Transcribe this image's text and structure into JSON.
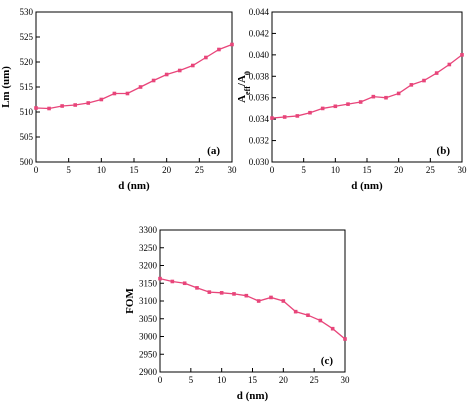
{
  "chart_data": [
    {
      "type": "line",
      "ylabel": "Lm (um)",
      "xlabel": "d (nm)",
      "annotation": "(a)",
      "color": "#e8457a",
      "x": [
        0,
        2,
        4,
        6,
        8,
        10,
        12,
        14,
        16,
        18,
        20,
        22,
        24,
        26,
        28,
        30
      ],
      "values": [
        510.8,
        510.7,
        511.2,
        511.4,
        511.8,
        512.5,
        513.7,
        513.7,
        515,
        516.3,
        517.5,
        518.3,
        519.3,
        520.9,
        522.5,
        523.5
      ],
      "xlim": [
        0,
        30
      ],
      "xticks": [
        0,
        5,
        10,
        15,
        20,
        25,
        30
      ],
      "ylim": [
        500,
        530
      ],
      "yticks": [
        500,
        505,
        510,
        515,
        520,
        525,
        530
      ]
    },
    {
      "type": "line",
      "ylabel": [
        "A",
        "eff",
        "/A",
        "0"
      ],
      "xlabel": "d (nm)",
      "annotation": "(b)",
      "color": "#e8457a",
      "x": [
        0,
        2,
        4,
        6,
        8,
        10,
        12,
        14,
        16,
        18,
        20,
        22,
        24,
        26,
        28,
        30
      ],
      "values": [
        0.0341,
        0.0342,
        0.0343,
        0.0346,
        0.035,
        0.0352,
        0.0354,
        0.0356,
        0.0361,
        0.036,
        0.0364,
        0.0372,
        0.0376,
        0.0383,
        0.0391,
        0.04
      ],
      "xlim": [
        0,
        30
      ],
      "xticks": [
        0,
        5,
        10,
        15,
        20,
        25,
        30
      ],
      "ylim": [
        0.03,
        0.044
      ],
      "yticks": [
        {
          "value": 0.03,
          "label": "0.030"
        },
        {
          "value": 0.032,
          "label": "0.032"
        },
        {
          "value": 0.034,
          "label": "0.034"
        },
        {
          "value": 0.036,
          "label": "0.036"
        },
        {
          "value": 0.038,
          "label": "0.038"
        },
        {
          "value": 0.04,
          "label": "0.040"
        },
        {
          "value": 0.042,
          "label": "0.042"
        },
        {
          "value": 0.044,
          "label": "0.044"
        }
      ]
    },
    {
      "type": "line",
      "ylabel": "FOM",
      "xlabel": "d (nm)",
      "annotation": "(c)",
      "color": "#e8457a",
      "x": [
        0,
        2,
        4,
        6,
        8,
        10,
        12,
        14,
        16,
        18,
        20,
        22,
        24,
        26,
        28,
        30
      ],
      "values": [
        3163,
        3155,
        3150,
        3137,
        3125,
        3123,
        3120,
        3115,
        3100,
        3110,
        3100,
        3070,
        3060,
        3045,
        3022,
        2993
      ],
      "xlim": [
        0,
        30
      ],
      "xticks": [
        0,
        5,
        10,
        15,
        20,
        25,
        30
      ],
      "ylim": [
        2900,
        3300
      ],
      "yticks": [
        2900,
        2950,
        3000,
        3050,
        3100,
        3150,
        3200,
        3250,
        3300
      ]
    }
  ]
}
